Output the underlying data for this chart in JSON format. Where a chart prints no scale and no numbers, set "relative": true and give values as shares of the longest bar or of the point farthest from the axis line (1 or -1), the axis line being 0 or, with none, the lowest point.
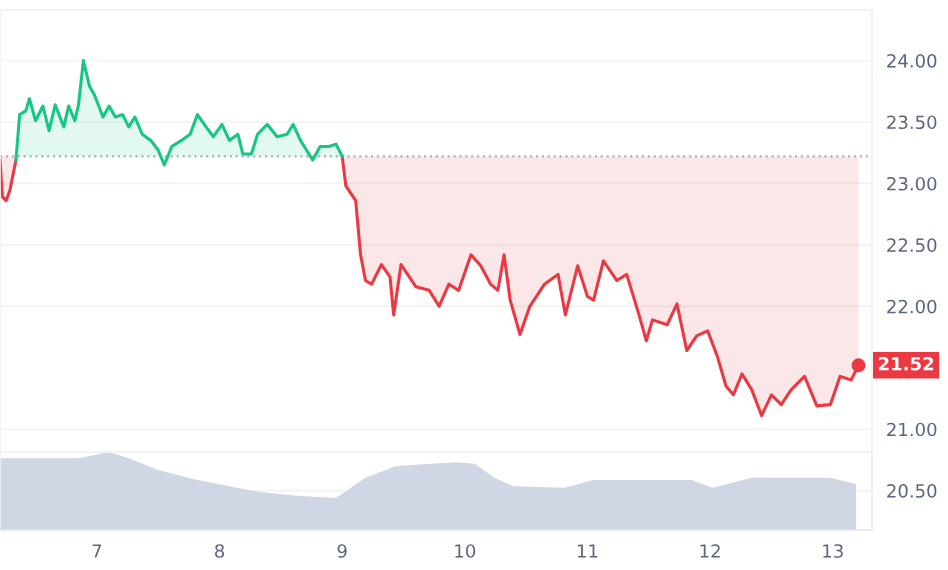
{
  "chart_data": [
    {
      "type": "line",
      "xlim": [
        6.21,
        13.32
      ],
      "xticks": [
        7,
        8,
        9,
        10,
        11,
        12,
        13
      ],
      "ylim": [
        20.18,
        24.41
      ],
      "yticks": [
        {
          "value": 20.5,
          "label": "20.50"
        },
        {
          "value": 21,
          "label": "21.00"
        },
        {
          "value": 22,
          "label": "22.00"
        },
        {
          "value": 22.5,
          "label": "22.50"
        },
        {
          "value": 23,
          "label": "23.00"
        },
        {
          "value": 23.5,
          "label": "23.50"
        },
        {
          "value": 24,
          "label": "24.00"
        }
      ],
      "tick_labels": "y",
      "grid": "y",
      "marker": "none",
      "line_style": "solid",
      "ref_lines": [
        {
          "axis": "y",
          "value": 23.22,
          "color": "#b0b6c0",
          "line_style": "dotted"
        }
      ],
      "annotations": [
        {
          "text": "21.52",
          "x": 13.21,
          "y": 21.52
        }
      ],
      "x": [
        6.21,
        6.23,
        6.26,
        6.29,
        6.34,
        6.37,
        6.42,
        6.45,
        6.5,
        6.56,
        6.61,
        6.66,
        6.73,
        6.77,
        6.82,
        6.85,
        6.89,
        6.94,
        6.98,
        7.05,
        7.1,
        7.15,
        7.21,
        7.26,
        7.31,
        7.37,
        7.44,
        7.5,
        7.55,
        7.61,
        7.69,
        7.76,
        7.82,
        7.89,
        7.95,
        8.02,
        8.08,
        8.15,
        8.19,
        8.26,
        8.31,
        8.39,
        8.47,
        8.55,
        8.6,
        8.66,
        8.71,
        8.76,
        8.82,
        8.89,
        8.95,
        9.0,
        9.03,
        9.11,
        9.15,
        9.19,
        9.24,
        9.32,
        9.39,
        9.42,
        9.48,
        9.6,
        9.71,
        9.79,
        9.87,
        9.95,
        10.05,
        10.13,
        10.21,
        10.27,
        10.32,
        10.37,
        10.45,
        10.53,
        10.65,
        10.76,
        10.82,
        10.92,
        11.0,
        11.05,
        11.13,
        11.24,
        11.32,
        11.42,
        11.48,
        11.53,
        11.65,
        11.73,
        11.81,
        11.89,
        11.98,
        12.06,
        12.13,
        12.19,
        12.26,
        12.34,
        12.42,
        12.5,
        12.58,
        12.66,
        12.77,
        12.87,
        12.98,
        13.06,
        13.15,
        13.21
      ],
      "series": [
        {
          "color": "#ea3943",
          "values": [
            23.19,
            22.89,
            22.86,
            22.94,
            23.19,
            null,
            null,
            null,
            null,
            null,
            null,
            null,
            null,
            null,
            null,
            null,
            null,
            null,
            null,
            null,
            null,
            null,
            null,
            null,
            null,
            null,
            null,
            null,
            null,
            null,
            null,
            null,
            null,
            null,
            null,
            null,
            null,
            null,
            null,
            null,
            null,
            null,
            null,
            null,
            null,
            null,
            null,
            null,
            null,
            null,
            null,
            23.22,
            22.98,
            22.86,
            22.42,
            22.21,
            22.18,
            22.34,
            22.24,
            21.93,
            22.34,
            22.16,
            22.13,
            22.0,
            22.18,
            22.13,
            22.42,
            22.33,
            22.18,
            22.13,
            22.42,
            22.05,
            21.77,
            22.0,
            22.18,
            22.26,
            21.93,
            22.33,
            22.08,
            22.05,
            22.37,
            22.21,
            22.26,
            21.93,
            21.72,
            21.89,
            21.85,
            22.02,
            21.64,
            21.76,
            21.8,
            21.59,
            21.35,
            21.28,
            21.45,
            21.32,
            21.11,
            21.28,
            21.2,
            21.32,
            21.43,
            21.19,
            21.2,
            21.43,
            21.4,
            21.52
          ]
        },
        {
          "color": "#16c784",
          "values": [
            null,
            null,
            null,
            null,
            23.19,
            23.56,
            23.59,
            23.69,
            23.51,
            23.63,
            23.43,
            23.64,
            23.46,
            23.63,
            23.51,
            23.64,
            24.0,
            23.79,
            23.72,
            23.54,
            23.63,
            23.54,
            23.56,
            23.46,
            23.54,
            23.4,
            23.35,
            23.27,
            23.15,
            23.3,
            23.35,
            23.4,
            23.56,
            23.46,
            23.38,
            23.48,
            23.35,
            23.4,
            23.24,
            23.24,
            23.4,
            23.48,
            23.38,
            23.4,
            23.48,
            23.35,
            23.27,
            23.19,
            23.3,
            23.3,
            23.32,
            23.22,
            null,
            null,
            null,
            null,
            null,
            null,
            null,
            null,
            null,
            null,
            null,
            null,
            null,
            null,
            null,
            null,
            null,
            null,
            null,
            null,
            null,
            null,
            null,
            null,
            null,
            null,
            null,
            null,
            null,
            null,
            null,
            null,
            null,
            null,
            null,
            null,
            null,
            null,
            null,
            null,
            null,
            null,
            null,
            null,
            null,
            null,
            null,
            null,
            null,
            null,
            null,
            null,
            null,
            null
          ]
        }
      ]
    },
    {
      "type": "area",
      "relative": true,
      "xlim": [
        6.21,
        13.32
      ],
      "xticks": [
        7,
        8,
        9,
        10,
        11,
        12,
        13
      ],
      "tick_labels": "x",
      "grid": false,
      "x": [
        6.21,
        6.53,
        6.85,
        7.1,
        7.26,
        7.5,
        7.82,
        8.31,
        8.63,
        8.95,
        9.19,
        9.44,
        9.92,
        10.08,
        10.24,
        10.4,
        10.81,
        11.05,
        11.85,
        12.02,
        12.34,
        12.98,
        13.19
      ],
      "series": [
        {
          "color": "#cfd6e4",
          "values": [
            0.92,
            0.92,
            0.92,
            1,
            0.92,
            0.77,
            0.64,
            0.49,
            0.44,
            0.41,
            0.67,
            0.82,
            0.87,
            0.85,
            0.67,
            0.56,
            0.54,
            0.64,
            0.64,
            0.54,
            0.67,
            0.67,
            0.59
          ]
        }
      ]
    }
  ]
}
